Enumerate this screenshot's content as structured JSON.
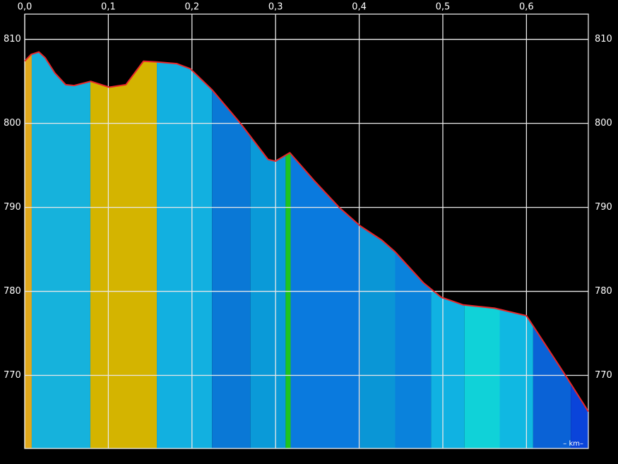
{
  "chart_data": {
    "type": "area",
    "unit_label": "– km–",
    "x": [
      0,
      0.0076,
      0.0169,
      0.0245,
      0.036,
      0.049,
      0.059,
      0.079,
      0.101,
      0.121,
      0.142,
      0.158,
      0.182,
      0.198,
      0.224,
      0.258,
      0.291,
      0.3,
      0.317,
      0.346,
      0.376,
      0.401,
      0.427,
      0.443,
      0.477,
      0.498,
      0.524,
      0.562,
      0.6,
      0.646,
      0.674
    ],
    "values": [
      807.4,
      808.2,
      808.5,
      807.8,
      806.0,
      804.6,
      804.5,
      805.0,
      804.3,
      804.6,
      807.4,
      807.3,
      807.1,
      806.5,
      804.0,
      800.0,
      795.7,
      795.5,
      796.5,
      793.2,
      790.0,
      787.8,
      786.1,
      784.7,
      781.0,
      779.3,
      778.4,
      778.0,
      777.1,
      770.1,
      765.7
    ],
    "line_color": "#e8262a",
    "segments": [
      {
        "start": 0,
        "end": 0.0084,
        "color": "#e0a81c"
      },
      {
        "start": 0.0084,
        "end": 0.0785,
        "color": "#16b2dc"
      },
      {
        "start": 0.0785,
        "end": 0.158,
        "color": "#d4b400"
      },
      {
        "start": 0.158,
        "end": 0.224,
        "color": "#12b0e0"
      },
      {
        "start": 0.224,
        "end": 0.27,
        "color": "#0a78d6"
      },
      {
        "start": 0.27,
        "end": 0.312,
        "color": "#0a9ad8"
      },
      {
        "start": 0.312,
        "end": 0.318,
        "color": "#1ec41e"
      },
      {
        "start": 0.318,
        "end": 0.401,
        "color": "#0a7ade"
      },
      {
        "start": 0.401,
        "end": 0.443,
        "color": "#0a96d6"
      },
      {
        "start": 0.443,
        "end": 0.486,
        "color": "#0a82dc"
      },
      {
        "start": 0.486,
        "end": 0.526,
        "color": "#10b2e2"
      },
      {
        "start": 0.526,
        "end": 0.568,
        "color": "#10d2d8"
      },
      {
        "start": 0.568,
        "end": 0.608,
        "color": "#10b8e2"
      },
      {
        "start": 0.608,
        "end": 0.653,
        "color": "#0a62d6"
      },
      {
        "start": 0.653,
        "end": 0.674,
        "color": "#0a44da"
      }
    ],
    "xlim": [
      0,
      0.674
    ],
    "ylim": [
      761.3,
      813
    ],
    "xticks": [
      {
        "value": 0,
        "label": "0,0"
      },
      {
        "value": 0.1,
        "label": "0,1"
      },
      {
        "value": 0.2,
        "label": "0,2"
      },
      {
        "value": 0.3,
        "label": "0,3"
      },
      {
        "value": 0.4,
        "label": "0,4"
      },
      {
        "value": 0.5,
        "label": "0,5"
      },
      {
        "value": 0.6,
        "label": "0,6"
      }
    ],
    "yticks": [
      770,
      780,
      790,
      800,
      810
    ],
    "grid": true
  }
}
